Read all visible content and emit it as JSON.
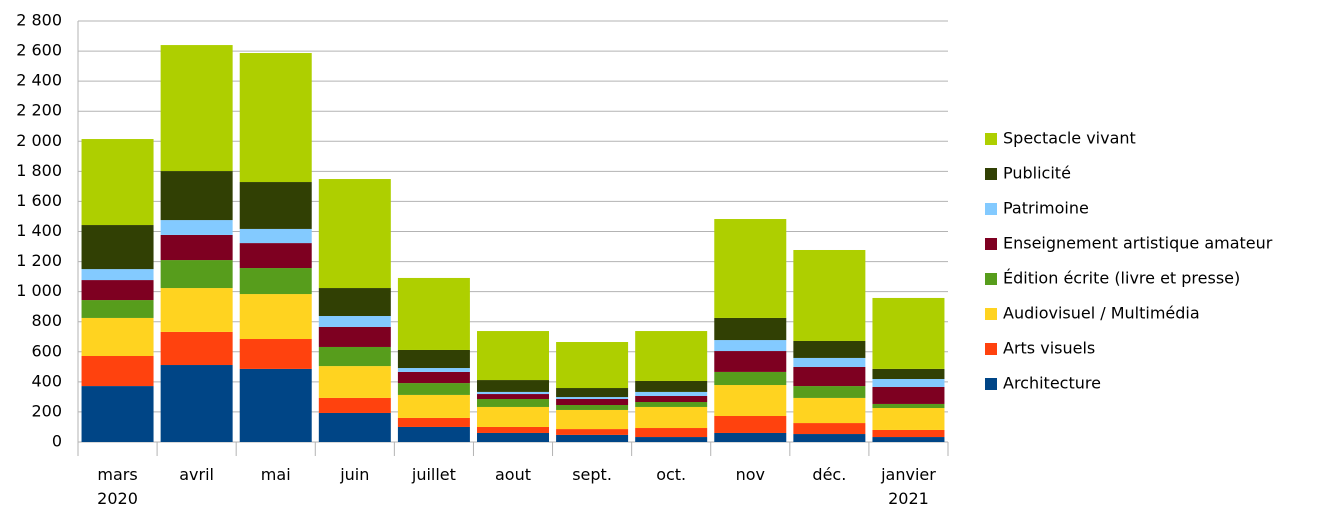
{
  "chart_data": {
    "type": "stacked_bar",
    "categories": [
      "mars 2020",
      "avril",
      "mai",
      "juin",
      "juillet",
      "aout",
      "sept.",
      "oct.",
      "nov",
      "déc.",
      "janvier 2021"
    ],
    "series": [
      {
        "name": "Architecture",
        "color": "#004586",
        "values": [
          372,
          512,
          486,
          193,
          100,
          60,
          47,
          33,
          60,
          53,
          33
        ]
      },
      {
        "name": "Arts visuels",
        "color": "#ff420e",
        "values": [
          200,
          220,
          199,
          100,
          60,
          40,
          39,
          60,
          113,
          73,
          47
        ]
      },
      {
        "name": "Audiovisuel / Multimédia",
        "color": "#ffd320",
        "values": [
          253,
          292,
          299,
          212,
          153,
          133,
          127,
          140,
          206,
          167,
          146
        ]
      },
      {
        "name": "Édition écrite (livre et presse)",
        "color": "#579d1c",
        "values": [
          119,
          186,
          173,
          127,
          79,
          53,
          33,
          33,
          87,
          79,
          27
        ]
      },
      {
        "name": "Enseignement artistique amateur",
        "color": "#7e0021",
        "values": [
          133,
          167,
          166,
          133,
          74,
          33,
          40,
          40,
          139,
          127,
          113
        ]
      },
      {
        "name": "Patrimoine",
        "color": "#83caff",
        "values": [
          73,
          99,
          94,
          73,
          26,
          14,
          13,
          27,
          73,
          60,
          53
        ]
      },
      {
        "name": "Publicité",
        "color": "#314004",
        "values": [
          293,
          326,
          312,
          186,
          120,
          79,
          60,
          73,
          147,
          113,
          67
        ]
      },
      {
        "name": "Spectacle vivant",
        "color": "#aecf00",
        "values": [
          572,
          838,
          858,
          725,
          479,
          326,
          306,
          332,
          658,
          605,
          472
        ]
      }
    ],
    "ylim": [
      0,
      2800
    ],
    "yticks": [
      0,
      200,
      400,
      600,
      800,
      {
        "value": 1000,
        "label": "1 000"
      },
      {
        "value": 1200,
        "label": "1 200"
      },
      {
        "value": 1400,
        "label": "1 400"
      },
      {
        "value": 1600,
        "label": "1 600"
      },
      {
        "value": 1800,
        "label": "1 800"
      },
      {
        "value": 2000,
        "label": "2 000"
      },
      {
        "value": 2200,
        "label": "2 200"
      },
      {
        "value": 2400,
        "label": "2 400"
      },
      {
        "value": 2600,
        "label": "2 600"
      },
      {
        "value": 2800,
        "label": "2 800"
      }
    ],
    "grid": true,
    "legend": "right"
  }
}
